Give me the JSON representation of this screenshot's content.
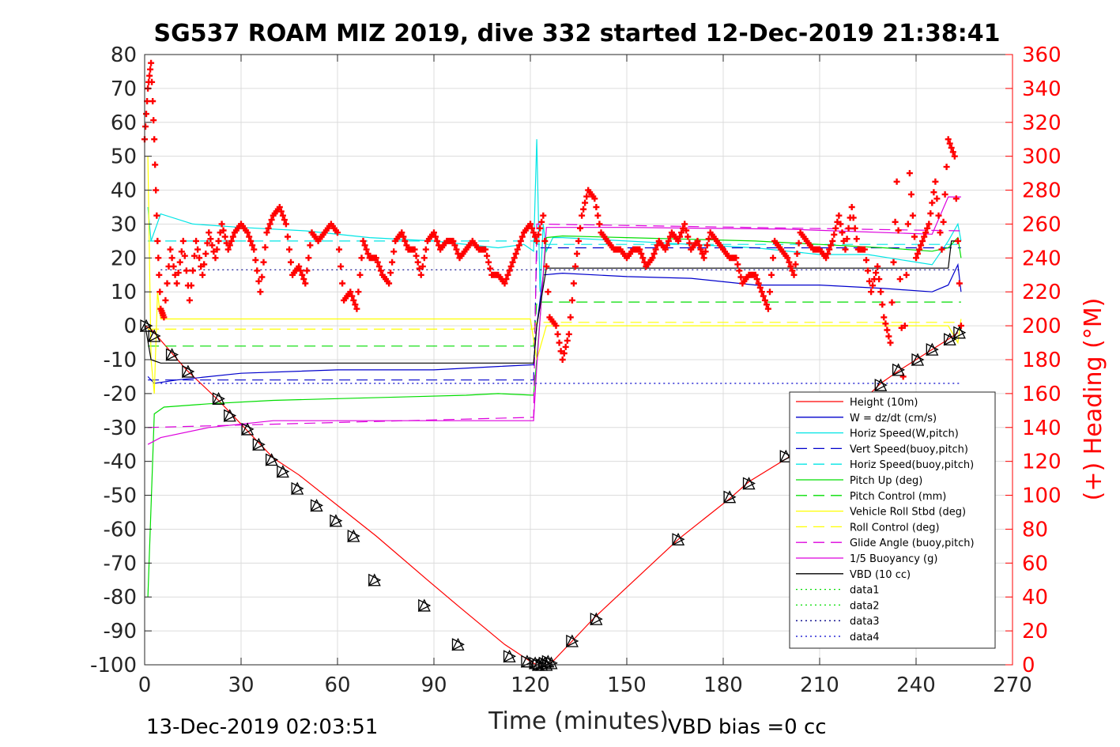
{
  "chart_data": {
    "type": "line",
    "title": "SG537 ROAM MIZ 2019, dive 332 started 12-Dec-2019 21:38:41",
    "xlabel": "Time (minutes)",
    "ylabel_right": "(+) Heading (°M)",
    "xlim": [
      0,
      270
    ],
    "ylim": [
      -100,
      80
    ],
    "ylim_right": [
      0,
      360
    ],
    "xticks": [
      "0",
      "30",
      "60",
      "90",
      "120",
      "150",
      "180",
      "210",
      "240",
      "270"
    ],
    "yticks": [
      "80",
      "70",
      "60",
      "50",
      "40",
      "30",
      "20",
      "10",
      "0",
      "-10",
      "-20",
      "-30",
      "-40",
      "-50",
      "-60",
      "-70",
      "-80",
      "-90",
      "-100"
    ],
    "yticks_right": [
      "360",
      "340",
      "320",
      "300",
      "280",
      "260",
      "240",
      "220",
      "200",
      "180",
      "160",
      "140",
      "120",
      "100",
      "80",
      "60",
      "40",
      "20",
      "0"
    ],
    "grid": true,
    "legend_position": "lower-right",
    "footer_left": "13-Dec-2019 02:03:51",
    "footer_right": "VBD bias =0 cc",
    "colors": {
      "red": "#ff0000",
      "blue": "#0000cc",
      "cyan": "#00e5e5",
      "green": "#00dd00",
      "yellow": "#ffff00",
      "magenta": "#dd00dd",
      "black": "#000000"
    },
    "series": [
      {
        "name": "Height (10m)",
        "color": "#ff0000",
        "style": "solid",
        "x": [
          0,
          2,
          13,
          23,
          32,
          40,
          48,
          60,
          72,
          88,
          98,
          112,
          120,
          122,
          125,
          127,
          133,
          140,
          166,
          182,
          188,
          200,
          218,
          229,
          235,
          240,
          245,
          250,
          253
        ],
        "y": [
          0,
          -1,
          -13,
          -22,
          -31,
          -39,
          -44,
          -53,
          -62,
          -75,
          -83,
          -94,
          -99,
          -100,
          -100,
          -99,
          -93,
          -86,
          -63,
          -51,
          -46,
          -39,
          -27,
          -17,
          -13,
          -10,
          -7,
          -4,
          -2
        ]
      },
      {
        "name": "W = dz/dt (cm/s)",
        "color": "#0000cc",
        "style": "solid",
        "x": [
          1,
          3,
          10,
          30,
          60,
          90,
          110,
          121,
          122,
          124,
          130,
          150,
          170,
          190,
          210,
          230,
          245,
          250,
          253,
          254
        ],
        "y": [
          -15,
          -17,
          -16,
          -14,
          -13,
          -13,
          -12,
          -11.5,
          0,
          15,
          15.5,
          14.5,
          14,
          12,
          12,
          11,
          10,
          12,
          18,
          10
        ]
      },
      {
        "name": "Horiz Speed(W,pitch)",
        "color": "#00e5e5",
        "style": "solid",
        "x": [
          1,
          2,
          5,
          15,
          30,
          50,
          70,
          90,
          110,
          118,
          121,
          122,
          123,
          124,
          125,
          127,
          130,
          150,
          170,
          190,
          210,
          225,
          245,
          250,
          253,
          254
        ],
        "y": [
          35,
          25,
          33,
          30,
          29,
          28,
          26,
          25,
          23,
          24,
          22,
          55,
          10,
          30,
          22,
          26,
          26,
          25,
          24,
          23,
          21,
          21,
          18,
          25,
          30,
          25
        ]
      },
      {
        "name": "Vert Speed(buoy,pitch)",
        "color": "#0000cc",
        "style": "dashed",
        "x": [
          1,
          121,
          122,
          254
        ],
        "y": [
          -16,
          -16,
          23,
          23
        ]
      },
      {
        "name": "Horiz Speed(buoy,pitch)",
        "color": "#00e5e5",
        "style": "dashed",
        "x": [
          1,
          121,
          122,
          254
        ],
        "y": [
          25,
          25,
          24,
          24
        ]
      },
      {
        "name": "Pitch Up (deg)",
        "color": "#00dd00",
        "style": "solid",
        "x": [
          1,
          3,
          6,
          20,
          40,
          60,
          80,
          100,
          110,
          121,
          122,
          125,
          130,
          150,
          170,
          190,
          210,
          230,
          245,
          250,
          253,
          254
        ],
        "y": [
          -80,
          -26,
          -24,
          -23,
          -22,
          -21.5,
          -21,
          -20.5,
          -20,
          -20.5,
          -10,
          26,
          26.5,
          26,
          25.5,
          25,
          24,
          23,
          22,
          23,
          26,
          20
        ]
      },
      {
        "name": "Pitch Control (mm)",
        "color": "#00dd00",
        "style": "dashed",
        "x": [
          1,
          121,
          122,
          254
        ],
        "y": [
          -6,
          -6,
          7,
          7
        ]
      },
      {
        "name": "Vehicle Roll Stbd (deg)",
        "color": "#ffff00",
        "style": "solid",
        "x": [
          1,
          2,
          3,
          4,
          5,
          8,
          12,
          20,
          40,
          60,
          80,
          100,
          120,
          122,
          125,
          130,
          150,
          170,
          200,
          230,
          240,
          250,
          253,
          254
        ],
        "y": [
          50,
          -10,
          -20,
          10,
          2,
          2,
          2,
          2,
          2,
          2,
          2,
          2,
          2,
          -10,
          0,
          0,
          0,
          0,
          0,
          0,
          0,
          0,
          -5,
          2
        ]
      },
      {
        "name": "Roll Control (deg)",
        "color": "#ffff00",
        "style": "dashed",
        "x": [
          1,
          121,
          122,
          254
        ],
        "y": [
          -1,
          -1,
          1,
          1
        ]
      },
      {
        "name": "Glide Angle (buoy,pitch)",
        "color": "#dd00dd",
        "style": "dashed",
        "x": [
          1,
          121,
          122,
          254
        ],
        "y": [
          -30,
          -27,
          30,
          28
        ]
      },
      {
        "name": "1/5 Buoyancy (g)",
        "color": "#dd00dd",
        "style": "solid",
        "x": [
          1,
          5,
          20,
          40,
          70,
          100,
          121,
          122,
          125,
          130,
          150,
          200,
          245,
          250,
          254
        ],
        "y": [
          -35,
          -33,
          -30,
          -28,
          -28,
          -28,
          -28,
          -12,
          29,
          29,
          29,
          28.5,
          27,
          38,
          38
        ]
      },
      {
        "name": "VBD (10 cc)",
        "color": "#000000",
        "style": "solid",
        "x": [
          0,
          2,
          5,
          121,
          122,
          125,
          250,
          251,
          254
        ],
        "y": [
          1,
          -10,
          -11,
          -11,
          0,
          17,
          17,
          25,
          25
        ]
      },
      {
        "name": "data1",
        "color": "#00dd00",
        "style": "dotted",
        "x": [],
        "y": []
      },
      {
        "name": "data2",
        "color": "#00dd00",
        "style": "dotted",
        "x": [],
        "y": []
      },
      {
        "name": "data3",
        "color": "#000088",
        "style": "dotted",
        "x": [
          5,
          254
        ],
        "y": [
          16.5,
          16.5
        ]
      },
      {
        "name": "data4",
        "color": "#0000cc",
        "style": "dotted",
        "x": [
          5,
          254
        ],
        "y": [
          -17,
          -17
        ]
      }
    ],
    "heading_series": {
      "name": "(+) Heading (°M)",
      "color": "#ff0000",
      "x": [
        0,
        1,
        2,
        3,
        4,
        5,
        6,
        8,
        10,
        12,
        14,
        16,
        18,
        20,
        22,
        24,
        26,
        28,
        30,
        32,
        34,
        36,
        38,
        40,
        42,
        44,
        46,
        48,
        50,
        52,
        54,
        56,
        58,
        60,
        62,
        64,
        66,
        68,
        70,
        72,
        74,
        76,
        78,
        80,
        82,
        84,
        86,
        88,
        90,
        92,
        94,
        96,
        98,
        100,
        102,
        104,
        106,
        108,
        110,
        112,
        114,
        116,
        118,
        120,
        122,
        124,
        126,
        128,
        130,
        132,
        134,
        136,
        138,
        140,
        142,
        144,
        146,
        148,
        150,
        152,
        154,
        156,
        158,
        160,
        162,
        164,
        166,
        168,
        170,
        172,
        174,
        176,
        178,
        180,
        182,
        184,
        186,
        188,
        190,
        192,
        194,
        196,
        198,
        200,
        202,
        204,
        206,
        208,
        210,
        212,
        214,
        216,
        218,
        220,
        222,
        224,
        226,
        228,
        230,
        232,
        234,
        236,
        238,
        240,
        242,
        244,
        246,
        248,
        250,
        252,
        254
      ],
      "y": [
        310,
        340,
        355,
        310,
        250,
        210,
        205,
        245,
        225,
        250,
        215,
        250,
        230,
        255,
        240,
        260,
        245,
        255,
        260,
        255,
        245,
        220,
        255,
        265,
        270,
        260,
        230,
        235,
        225,
        255,
        250,
        255,
        260,
        255,
        215,
        220,
        210,
        250,
        240,
        240,
        230,
        225,
        250,
        255,
        245,
        245,
        230,
        250,
        255,
        245,
        250,
        250,
        240,
        245,
        250,
        245,
        245,
        230,
        230,
        225,
        235,
        245,
        255,
        260,
        250,
        265,
        205,
        200,
        180,
        195,
        235,
        265,
        280,
        275,
        255,
        250,
        245,
        245,
        240,
        245,
        245,
        235,
        240,
        250,
        245,
        255,
        250,
        260,
        245,
        250,
        240,
        255,
        250,
        245,
        240,
        240,
        225,
        230,
        230,
        220,
        210,
        250,
        245,
        240,
        230,
        255,
        250,
        245,
        245,
        240,
        250,
        265,
        245,
        270,
        245,
        245,
        220,
        235,
        205,
        190,
        285,
        170,
        290,
        240,
        250,
        260,
        285,
        245,
        310,
        300,
        200
      ]
    },
    "vbd_markers": {
      "x": [
        0.5,
        3,
        8.5,
        13.5,
        23,
        26.5,
        32,
        35.5,
        39.5,
        43,
        47.5,
        53.5,
        59.5,
        65,
        71.5,
        87,
        97.5,
        113.5,
        119,
        121.5,
        122.5,
        123.5,
        124.5,
        125,
        125.5,
        126.5,
        133,
        140.5,
        166,
        182,
        188,
        199.5,
        212.5,
        229,
        234.5,
        240.5,
        245,
        250.5,
        253.5
      ],
      "y": [
        0,
        -3,
        -8.5,
        -13.5,
        -21.5,
        -26.5,
        -30.5,
        -35,
        -39.5,
        -43,
        -48,
        -53,
        -57.5,
        -62,
        -75,
        -82.5,
        -94,
        -97.5,
        -99,
        -99.5,
        -100,
        -100,
        -99.5,
        -100,
        -99,
        -99.5,
        -93,
        -86.5,
        -63,
        -50.5,
        -46.5,
        -38.5,
        -25,
        -17.5,
        -13,
        -10,
        -7,
        -4,
        -2
      ]
    }
  }
}
